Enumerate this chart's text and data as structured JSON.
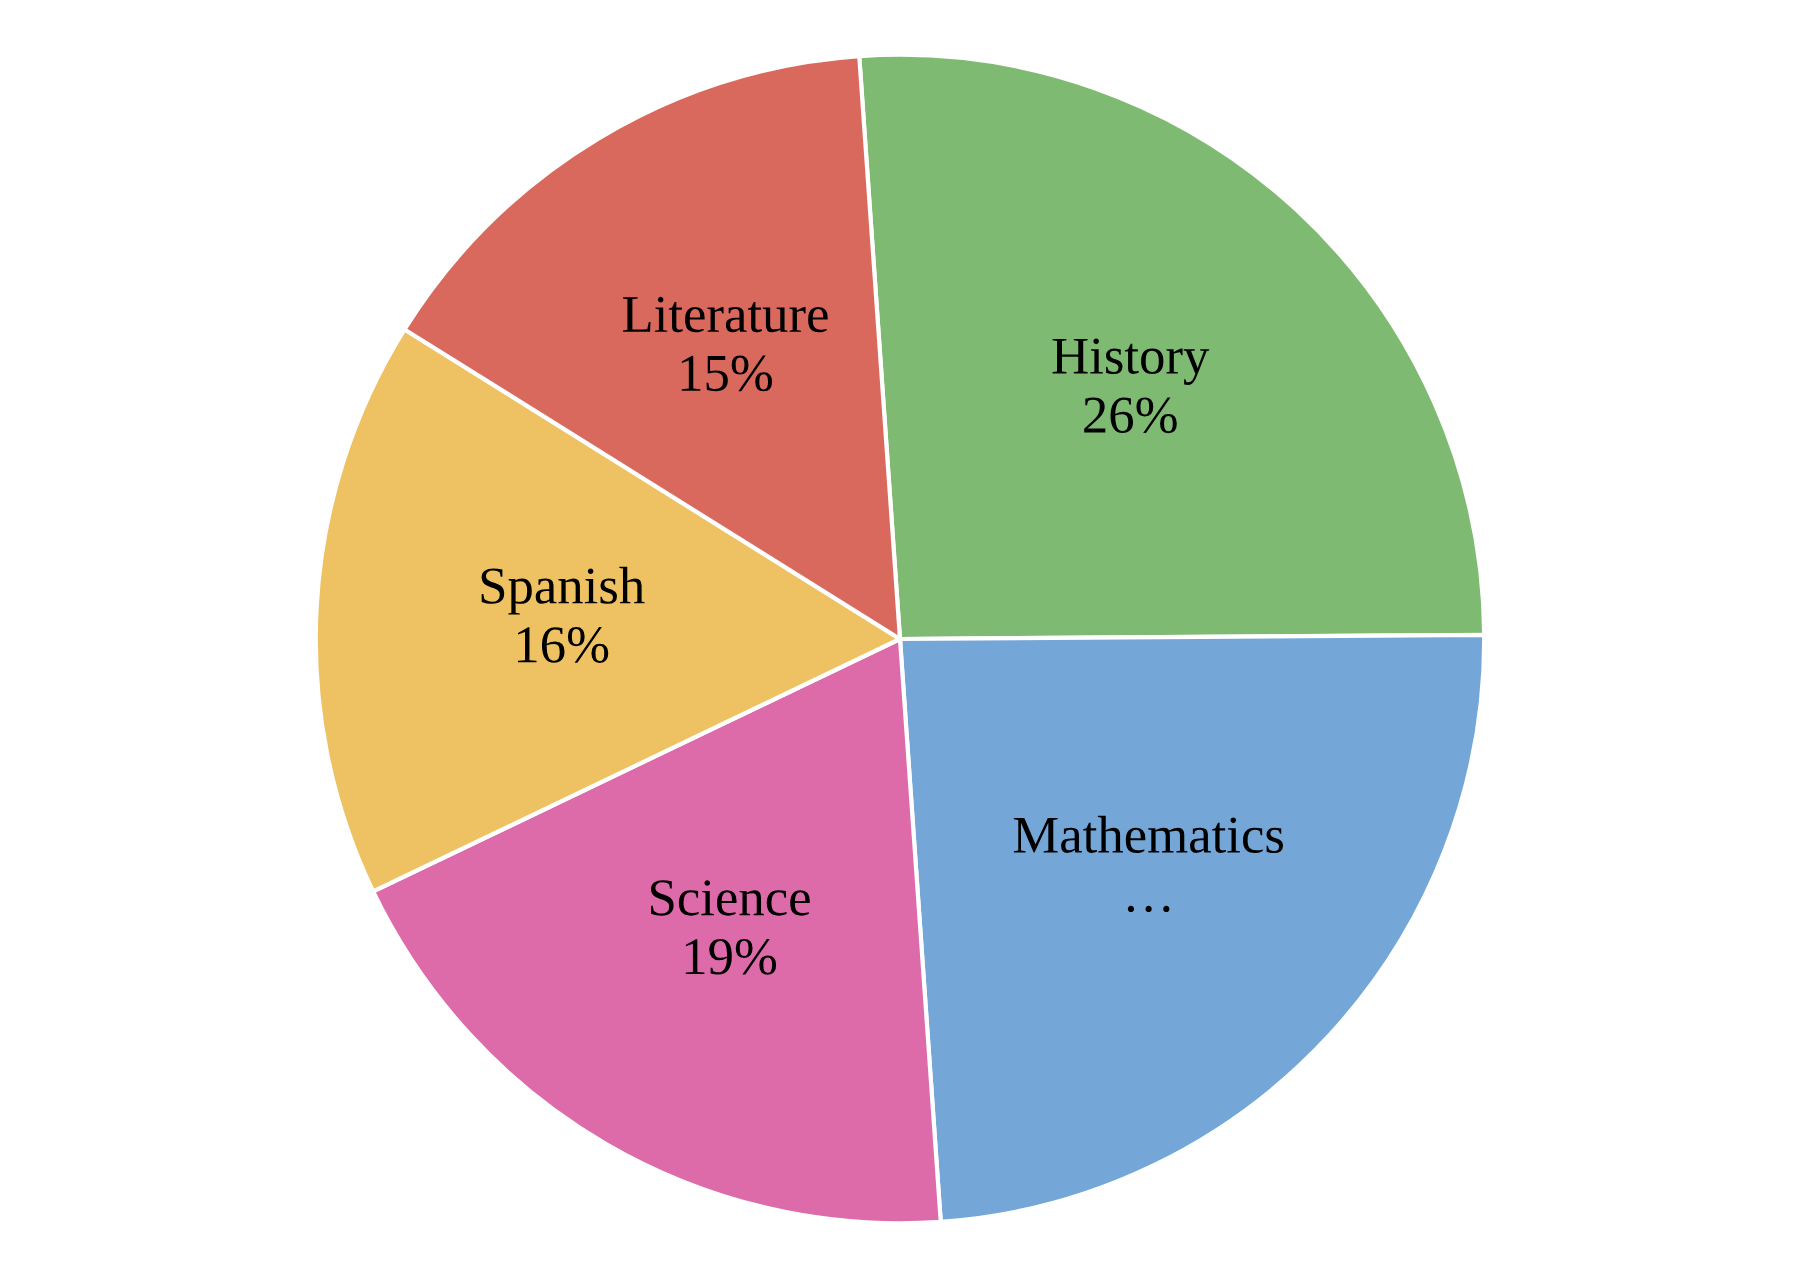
{
  "chart_data": {
    "type": "pie",
    "categories": [
      "History",
      "Mathematics",
      "Science",
      "Spanish",
      "Literature"
    ],
    "values": [
      26,
      24,
      19,
      16,
      15
    ],
    "value_labels": [
      "26%",
      "…",
      "19%",
      "16%",
      "15%"
    ],
    "colors": [
      "#7fba72",
      "#74a7d8",
      "#dd6aa9",
      "#eec262",
      "#d9695c"
    ],
    "legend": false
  }
}
